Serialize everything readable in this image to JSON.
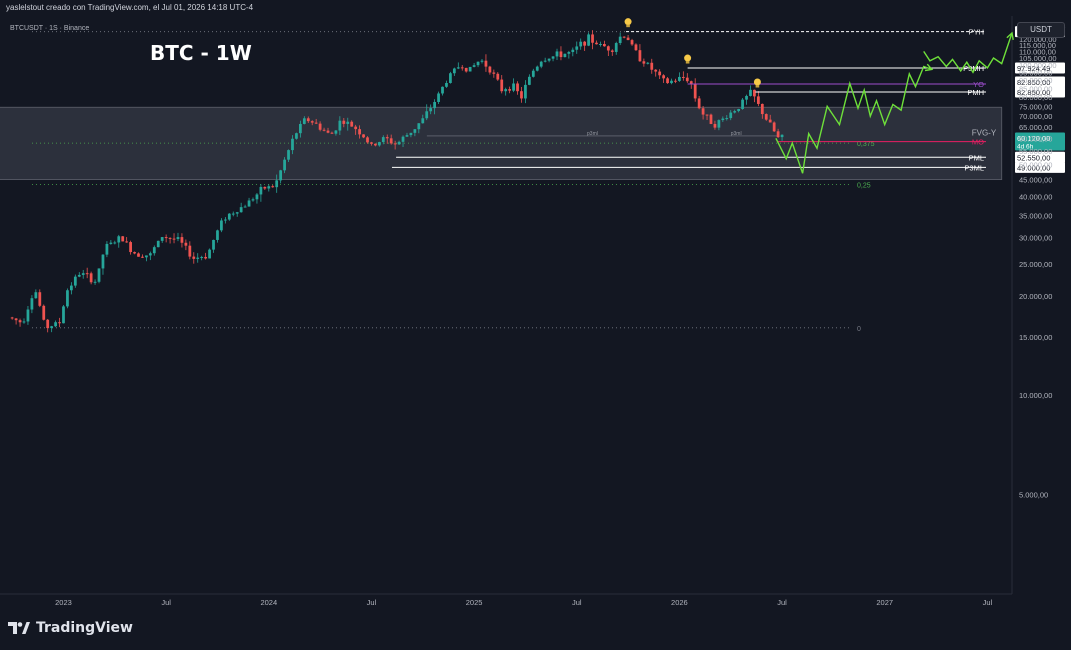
{
  "header": {
    "attribution": "yaslelstout creado con TradingView.com, el Jul 01, 2026 14:18 UTC-4"
  },
  "symbol_line": "BTCUSDT · 1S · Binance",
  "chart_title": "BTC - 1W",
  "currency": "USDT",
  "footer": {
    "brand": "TradingView"
  },
  "colors": {
    "background": "#131722",
    "up_candle": "#26a69a",
    "down_candle": "#ef5350",
    "projection": "#6ee03a",
    "zone_fill": "#363a45",
    "fib_line": "#4caf50",
    "yo_line": "#9c4dcc",
    "mo_line": "#e91e63",
    "bulb": "#f7c948"
  },
  "chart_data": {
    "type": "candlestick",
    "title": "BTC - 1W",
    "symbol": "BTCUSDT",
    "exchange": "Binance",
    "yaxis_ticks": [
      5000,
      10000,
      15000,
      20000,
      25000,
      30000,
      35000,
      40000,
      45000,
      50000,
      55000,
      60000,
      65000,
      70000,
      75000,
      80000,
      85000,
      90000,
      95000,
      100000,
      105000,
      110000,
      115000,
      120000,
      125000,
      130000
    ],
    "yaxis_tick_labels": [
      "5.000,00",
      "10.000,00",
      "15.000,00",
      "20.000,00",
      "25.000,00",
      "30.000,00",
      "35.000,00",
      "40.000,00",
      "45.000,00",
      "50.000,00",
      "55.000,00",
      "60.000,00",
      "65.000,00",
      "70.000,00",
      "75.000,00",
      "80.000,00",
      "85.000,00",
      "90.000,00",
      "95.000,00",
      "100.000,00",
      "105.000,00",
      "110.000,00",
      "115.000,00",
      "120.000,00",
      "125.000,00",
      "130.000,00"
    ],
    "xaxis_ticks": [
      {
        "label": "2023",
        "t": 2023.0
      },
      {
        "label": "Jul",
        "t": 2023.5
      },
      {
        "label": "2024",
        "t": 2024.0
      },
      {
        "label": "Jul",
        "t": 2024.5
      },
      {
        "label": "2025",
        "t": 2025.0
      },
      {
        "label": "Jul",
        "t": 2025.5
      },
      {
        "label": "2026",
        "t": 2026.0
      },
      {
        "label": "Jul",
        "t": 2026.5
      },
      {
        "label": "2027",
        "t": 2027.0
      },
      {
        "label": "Jul",
        "t": 2027.5
      }
    ],
    "price_path": [
      [
        2022.75,
        17200
      ],
      [
        2022.82,
        16600
      ],
      [
        2022.88,
        21000
      ],
      [
        2022.93,
        16000
      ],
      [
        2023.0,
        16600
      ],
      [
        2023.04,
        21000
      ],
      [
        2023.1,
        23500
      ],
      [
        2023.18,
        22000
      ],
      [
        2023.22,
        28000
      ],
      [
        2023.3,
        30000
      ],
      [
        2023.36,
        27000
      ],
      [
        2023.44,
        26500
      ],
      [
        2023.5,
        30300
      ],
      [
        2023.58,
        29500
      ],
      [
        2023.65,
        26000
      ],
      [
        2023.72,
        26500
      ],
      [
        2023.8,
        34500
      ],
      [
        2023.9,
        37500
      ],
      [
        2024.0,
        42500
      ],
      [
        2024.05,
        43000
      ],
      [
        2024.1,
        52000
      ],
      [
        2024.15,
        62000
      ],
      [
        2024.2,
        69000
      ],
      [
        2024.25,
        66000
      ],
      [
        2024.32,
        61000
      ],
      [
        2024.37,
        68000
      ],
      [
        2024.45,
        64000
      ],
      [
        2024.52,
        56500
      ],
      [
        2024.58,
        60000
      ],
      [
        2024.64,
        57500
      ],
      [
        2024.72,
        63500
      ],
      [
        2024.78,
        69500
      ],
      [
        2024.84,
        80000
      ],
      [
        2024.9,
        93000
      ],
      [
        2024.95,
        100000
      ],
      [
        2025.0,
        97000
      ],
      [
        2025.05,
        104000
      ],
      [
        2025.1,
        97000
      ],
      [
        2025.15,
        84000
      ],
      [
        2025.2,
        87000
      ],
      [
        2025.25,
        80000
      ],
      [
        2025.3,
        95000
      ],
      [
        2025.35,
        104000
      ],
      [
        2025.4,
        106000
      ],
      [
        2025.45,
        108000
      ],
      [
        2025.5,
        109000
      ],
      [
        2025.55,
        118000
      ],
      [
        2025.58,
        120000
      ],
      [
        2025.63,
        115000
      ],
      [
        2025.69,
        112000
      ],
      [
        2025.74,
        124000
      ],
      [
        2025.77,
        120000
      ],
      [
        2025.8,
        110000
      ],
      [
        2025.85,
        102000
      ],
      [
        2025.9,
        95000
      ],
      [
        2025.95,
        88000
      ],
      [
        2026.0,
        90000
      ],
      [
        2026.05,
        92000
      ],
      [
        2026.08,
        87000
      ],
      [
        2026.1,
        78000
      ],
      [
        2026.14,
        70000
      ],
      [
        2026.2,
        66000
      ],
      [
        2026.26,
        71000
      ],
      [
        2026.3,
        74000
      ],
      [
        2026.34,
        79000
      ],
      [
        2026.37,
        83000
      ],
      [
        2026.4,
        76000
      ],
      [
        2026.44,
        69000
      ],
      [
        2026.48,
        63000
      ],
      [
        2026.5,
        60100
      ]
    ],
    "highs": [
      {
        "t": 2024.2,
        "v": 73700
      },
      {
        "t": 2025.74,
        "v": 126199.63
      },
      {
        "t": 2026.04,
        "v": 97924.49
      },
      {
        "t": 2026.36,
        "v": 82850
      }
    ],
    "lows": [
      {
        "t": 2024.62,
        "v": 49000
      },
      {
        "t": 2022.95,
        "v": 15500
      },
      {
        "t": 2024.6,
        "v": 52550
      },
      {
        "t": 2026.4,
        "v": 62000
      }
    ],
    "series": [
      {
        "name": "Projection",
        "x": [
          2026.47,
          2026.52,
          2026.55,
          2026.6,
          2026.63,
          2026.67,
          2026.72,
          2026.78,
          2026.83,
          2026.87,
          2026.9,
          2026.93,
          2026.96,
          2027.0,
          2027.04,
          2027.08,
          2027.12,
          2027.15,
          2027.19,
          2027.23
        ],
        "y": [
          60000,
          52000,
          58000,
          47000,
          62000,
          56000,
          75000,
          66000,
          88000,
          74000,
          84000,
          70000,
          78000,
          66000,
          76000,
          73000,
          94000,
          86000,
          99000,
          97000
        ]
      },
      {
        "name": "Projection-2",
        "x": [
          2027.19,
          2027.22,
          2027.26,
          2027.3,
          2027.33,
          2027.37,
          2027.4,
          2027.43,
          2027.46,
          2027.5,
          2027.53,
          2027.57,
          2027.62
        ],
        "y": [
          110000,
          103000,
          106000,
          99000,
          104000,
          96000,
          102000,
          95000,
          103000,
          98000,
          105000,
          101000,
          125000
        ]
      }
    ],
    "levels": [
      {
        "label": "PYH",
        "value": 126199.63,
        "value_label": "126.199,63",
        "color": "#ffffff",
        "x0": 2025.74,
        "x1": 2027.55,
        "style": "dashed"
      },
      {
        "label": "P3MH",
        "value": 97924.49,
        "value_label": "97.924,49",
        "color": "#ffffff",
        "x0": 2026.04,
        "x1": 2027.55,
        "style": "solid"
      },
      {
        "label": "YO",
        "value": 87648.21,
        "value_label": "87.648,21",
        "color": "#9c4dcc",
        "x0": 2026.04,
        "x1": 2027.55,
        "style": "solid"
      },
      {
        "label": "PMH",
        "value": 82850,
        "value_label": "82.850,00",
        "color": "#ffffff",
        "x0": 2026.37,
        "x1": 2027.55,
        "style": "solid"
      },
      {
        "label": "MO",
        "value": 58624.71,
        "value_label": "58.624,71",
        "color": "#e91e63",
        "x0": 2026.48,
        "x1": 2027.55,
        "style": "solid"
      },
      {
        "label": "PML",
        "value": 52550,
        "value_label": "52.550,00",
        "color": "#ffffff",
        "x0": 2024.62,
        "x1": 2027.55,
        "style": "solid"
      },
      {
        "label": "P3ML",
        "value": 49000,
        "value_label": "49.000,00",
        "color": "#ffffff",
        "x0": 2024.6,
        "x1": 2027.55,
        "style": "solid"
      }
    ],
    "price_tags": [
      {
        "value": 82850,
        "value_label": "82.850,00",
        "sub": "",
        "color": "#ffffff",
        "bg": "#ffffff",
        "fg": "#131722",
        "offset": -10
      },
      {
        "value": 60120,
        "value_label": "60.120,00",
        "sub": "4d 6h",
        "color": "#26a69a",
        "bg": "#26a69a",
        "fg": "#ffffff",
        "offset": 0
      }
    ],
    "zone": {
      "label": "FVG-Y",
      "t0": 2022.13,
      "t1": 2027.57,
      "v_high": 74500,
      "v_low": 45000
    },
    "fib_lines": [
      {
        "label": "0,375",
        "value": 58000,
        "color": "#4caf50"
      },
      {
        "label": "0,25",
        "value": 43500,
        "color": "#4caf50"
      },
      {
        "label": "0",
        "value": 16000,
        "color": "#787b86"
      }
    ],
    "top_dotted": {
      "value": 126199.63
    },
    "p3ml_labels": [
      {
        "text": "p3ml",
        "t": 2025.55
      },
      {
        "text": "p3ml",
        "t": 2026.25
      }
    ],
    "p3ml_value": 61000,
    "bulbs": [
      {
        "t": 2025.75,
        "v": 126199.63
      },
      {
        "t": 2026.04,
        "v": 97924.49
      },
      {
        "t": 2026.38,
        "v": 82850
      }
    ],
    "ylim": [
      2500,
      135000
    ],
    "xlim": [
      2022.72,
      2027.62
    ]
  }
}
